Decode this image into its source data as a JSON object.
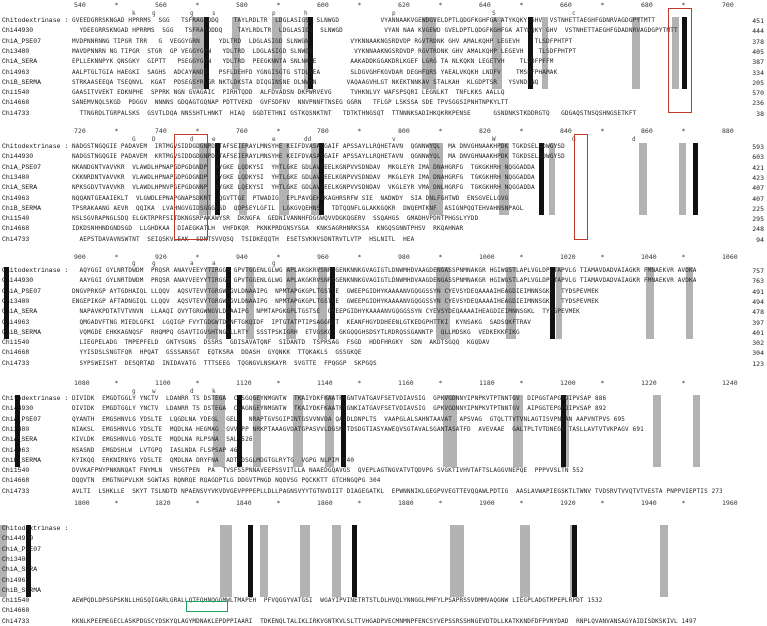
{
  "species": [
    "Chitodextrinase :",
    "Chi44930",
    "ChiA_PSE07",
    "Chi3480",
    "ChiA_SERA",
    "Chi4963",
    "ChiB_SERMA",
    "Chi1540",
    "Chi4668",
    "Chi4733"
  ],
  "block1": {
    "ruler": [
      "540",
      "*",
      "560",
      "*",
      "580",
      "*",
      "600",
      "*",
      "620",
      "*",
      "640",
      "*",
      "660",
      "*",
      "680",
      "*",
      "700"
    ],
    "cons": [
      "k",
      "g",
      "g",
      "s",
      "p",
      "h",
      "p",
      "S",
      "c"
    ],
    "seqs": [
      "GVEEDGRRSKNGAD HPRRMS  SGG   TSFRAGDDDQ    TAYLRDLTR  LDGLASIGS  SLNWGD           VYANNAAKVGEWDGVELDPTLQDGFKGHFGA ATYKQKY GHV  VSTNHETTAEGHFGDNRVAGDGPYTMTT",
      "  YDEEGRRSKNGAD HPRRMS  SGG   TSFRAGDDDQ    TAYLRDLTR  LDGLASIGS  SLNWGD           VYAN NAA KVGEWD GVELDPTLQDGFKGHFGA ATYKQKY GHV  VSTNHETTAEGHFGDADNRVAGDGPYTMTT",
      "MVDPNNRNNG TIPGR TRR   G  VEGGYGRN     YDLTRD  LDGLASIGD SLNWGN           VYKNNAAKNGSRDVDP RGVTRDNK GHV AMALKQHP LEGEVH    TLSDFPHTPT",
      "MAVDPNNRN NG TIPGR  STGR  GP VEGGYGRN   YDLTRD  LDGLASIGD SLNWGN           VYKNNAAKNGSRDVDP RGVTRDNK GHV AMALKQHP LEGEVH    TLSDFPHTPT",
      "EPLLEKNNPYK QNSGKY  GIPTT   PSEGGYGRN   YDLTRD  PEEGKNNTA SNLNKGE         AAKADDKGGAKDRLKGEF LGRG TA NLKQKN LEGETVH    TLSDFPFFM",
      "AALPTGLTGIA HAEGKI  SAGHS  ADCAYANDN   PSFLDEHFD YGNGISGTG STDLWEA        SLDGVGHFKGVDAR DEGHFQRS YAEALVKQKH LNDFV    TMSEFPHAMAK",
      "STRKAASEEQA TSEQNVL  KGAT  PDSEGSYRLGR NKTLDKSTA DIQGINSNE DLNWKN        VAQAAGVHLGT NKEKTNNKAV STALKAH  KLGDPTSR   YSVNDLNQ",
      "GAASITVVEKT EDKNPHE  SPPRK NGN GVAGAIC  PIRHTQDD  ALFDVADSN DKPWRVEVG     TVHKNLVY WAFSPSQRI LEGNLKT  TNFLKKS AALLQ",
      "SANEMVNQLSKGD  PDGGV  NNNNS GDQAGTGQNAP PDTTVEKD  GVFSDFNV  NNVPNNFTNSEG GGRN   TFLGP LSKSSA SDE TPVSGGSIPNHTNPKYLTT",
      "  TTNGRDLTGRPALSKS  GSVTLDQA NNSSHTLHNKT  HIAQ  GGDTETHNI GSTKQSNKTNT   TDTKTHNGSQT  TTNNNKSADIHKQKRKPENSE      GSNDNKSTKDDRGTQ   GDGAQSTNSQSHNGSETKFT"
    ],
    "ends": [
      "451",
      "444",
      "378",
      "405",
      "387",
      "334",
      "205",
      "570",
      "236",
      "38"
    ]
  },
  "block2": {
    "ruler": [
      "720",
      "*",
      "740",
      "*",
      "760",
      "*",
      "780",
      "*",
      "800",
      "*",
      "820",
      "*",
      "840",
      "*",
      "860",
      "*",
      "880"
    ],
    "cons": [
      "G",
      "D",
      "d",
      "e",
      "e",
      "dd",
      "v",
      "W",
      "G",
      "d"
    ],
    "seqs": [
      "NADGSTNGQGIE PADAVEM  IRTMGVSIDDGDGNPDDTAFSEIERAYLMNSYHE KEIFDVASAQGAIF APSSAYLLRQHETAVN  QGNNWYQL  MA DNVGHNAAKHPDK TGKDSELADWGYSD",
      "NADGSTNGQGIE PADAVEM  KRTMGVSIDDGDGNPDDTAFSEIERAYLMNSYHE KEIFDVASAQGAIF APSSAYLLRQHETAVN  QGNNWYQL  MA DNVGHNAAKHPDK TGKDSELADWGYSD",
      "NKANDGNTVAVVKR  VLAWDLHPNAPGDPGDGNDP  AYGKE LQDKYSI  YHTLGKE GDLAVGEELKGNPVVSDNDAV  MKGLEYR IMA DNAHGRFG  TGKGKHRH NQGGADDA",
      "CKKNRDNTVAVVKR  VLAWDLHPNAPGDPGDGNDP  AYGKE LQDKYSI  YHTLGKE GDLAVGEELKGNPVVSDNDAV  MKGLEYR IMA DNAHGRFG  TGKGKHRH NQGGADDA",
      "NPKSGDVTVAVVKR  VLAWDLHPNVPGEPGDGNNP  AYGKE LQEKYSI  YHTLGKE GDLAVGEELKGNPVVSDNDAV  VKGLEYR VMA DNLHGRFG  TGKGKHRH NQGGADDA",
      "NQQANTGEAAIEKLT  VLGWDLEPNAPGNAPSDKRT  QGVTTGE  PTWADIG  EPLPAVGEHSKAGHRSRFW SIE  NADWDY  SIA DNLFGHTWD  ENSGVELLGVG",
      "TPSRAKAANG AEVR  QQIKA  LVAHNGVGIDSGGGVSD  QDPSEYLGFIL  LGKGVQEHNSE  TDTQQNFLGLAKKGQKR  DWQEMTKNF  ASIGNPQQTEHVAHNSNPAGL",
      "NSLSGVRAPNGLSDQ ELGKTRPRFSITDKNGSRPAKAWYSR  DKNGFA  GEDNIVANNHFDGGWQVVDGKQGERV  SSQAHGS  GMADHVPDNTPHGSLYYDD",
      "IDKDSNHHNDGNDSGD  LLGHDKAA  DIAEGKATLH  VHFDKQR  PKNKPRDGNSYSGA  KNKSAGRHNRKSSA  KNGQSGNNTPHSV  RKQAHNAR",
      "  AEPSTDAVAVNSWTNT  SEIQSKVLEAK  SDNTSVVQSQ  TSIDKEQQTH  ESETSVKNVSDNTRVTLVTP  HSLNITL  HEA"
    ],
    "ends": [
      "593",
      "603",
      "421",
      "423",
      "407",
      "407",
      "225",
      "295",
      "248",
      "94"
    ]
  },
  "block3": {
    "ruler": [
      "900",
      "*",
      "920",
      "*",
      "940",
      "*",
      "960",
      "*",
      "980",
      "*",
      "1000",
      "*",
      "1020",
      "*",
      "1040",
      "*",
      "1060"
    ],
    "cons": [
      "g",
      "g",
      "a",
      "a",
      "g"
    ],
    "seqs": [
      "  AQYGGI GYLNRTDWDM  PRQSR ANAYVEEYYTIRGGW GPVTGGENLGLWG APLAKGKRVSNRYGENKNNKGVAGIGTLDNWMHDVAAGDENGASSPNMNAKGR HGIWGSTLAPLVGLDPTTAPVLG TIAMAVDADVAIAGKR FMNAEKVR AVDKA",
      "  AAYGGI GYLNRTDWDM  PRQSR ANAYVEEYYTIRGGW GPVTGGENLGLWG APLAKGKRVSNRYGENKNNKGVAGIGTLDNWMHDVAAGDENGASSPNMNAKGR HGIWGSTLAPLVGLDPTTAPVLG TIAMAVDADVAIAGKR FMNAEKVR AVDKA",
      "DNGVPRKGP AYTGDHAIQL LLQQV  AQSVTEVYTGRGWNGVLDNAAIPG  NPMTAPGKGPLTGSTSE  GWEEPGIDHYKAAAANVGQGGSSYN CYEVSYDEQAAAAIHEAGDIEIMNNSGKL  TYDSPEVMEK",
      "ENGEPIKGP AFTADNGIQL LLQQV  AQSVTEVYTGRGWNGVLDNAAIPG  NPMTAPGKGPLTGSTSE  GWEEPGIDHYKAAAANVGQGGSSYN CYEVSYDEQAAAAIHEAGDIEIMNNSGKL  TYDSPEVMEK",
      "  NAPAVKPDTATVTVNVN  LLAAQI QVYTGRGWNGVLDNAAIPG  NPMTAPGKGPLTGSTSE  GWEEPGIDHYKAAAANVGQGGSSYN CYEVSYDEQAAAAIHEAGDIEIMNNSGKL  TYDSPEVMEK",
      "  QMGADVFTNG MIEDLGFKI  LGQIGP FVYTGDGWTDNNFTGKQIDF  IPTGTATPTIPSAGGRHT  KEANFHGYDDHEENLGTKEDGPHTTKI  KYNSAKG  SADSQKFTRAV",
      "  VQMGDE EHKKAGNQSF  RHQMPQ GSAVTIGVSHTNGFLLRTY  SSSTPSKIGRH  ETVGSKQ  GKGQQGHSDSYTLRDRQSSGANNTP  QLLMDSKG  VEDKEKKFIKG",
      "  LIEGPELADG  TMPEPFELD  GNTYSGNS  DSSRS  GDISAVATQNF  SIDANTD  TSPRSAG  FSGD  HDDFHRGKY  SDN  AKDTSGQQ  KGQDAV",
      "  YYISDSLSNGTFQR  HPQAT  GSSSANSGT  EQTKSRA  DDASH  GYQNKK  TTQKAKLS  GSSGKQE",
      "  SYPSWEISHT  DESQRTAD  INIDAVATG  TTTSEEG  TQGNGVLNSKAYR  SVGTTE  FPQGGP  SKPGQS"
    ],
    "ends": [
      "757",
      "763",
      "491",
      "494",
      "478",
      "397",
      "401",
      "302",
      "304",
      "123"
    ]
  },
  "block4": {
    "ruler": [
      "1080",
      "*",
      "1100",
      "*",
      "1120",
      "*",
      "1140",
      "*",
      "1160",
      "*",
      "1180",
      "*",
      "1200",
      "*",
      "1220",
      "*",
      "1240"
    ],
    "cons": [
      "g",
      "w",
      "d",
      "k"
    ],
    "ruler_bottom": [
      "1800",
      "*",
      "1820",
      "*",
      "1840",
      "*",
      "1860",
      "*",
      "1880",
      "*",
      "1900",
      "*",
      "1920",
      "*",
      "1940",
      "*",
      "1960"
    ],
    "seqs": [
      "DIVIDK  EMGDTGGLY YNCTV  LDANRR TS DSTEGA  CESGQGEYNMGNTW  TKAIYDKFKAATPYGNTVATGAVFSETVDIAVSIG  GPKVGDNNYIPNPKVTPTNNTGV  DIPGGTAPGFDIPVSAP 886",
      "DIVIDK  EMGDTGGLY YNCTV  LDANRR TS DSTEGA  CAAGNGEYNMGNTW  TKAIYDKFKAATPYGNKIATGAVFSETVDIAVSIG  GPKVGDNNYIPNPKVTPTNNTGV  AIPGGTEPGFDIPVSAP 892",
      "QYANTH  EMGSHNVLG YDSLTE  LQGDLNA YDEGL  GELP  NRAPTGVSGIPINTGSVVNVDA QASDLDNPLTS  VAAPGLALSAHNTAAVAT  APSVAG  GTQLTTVTVNLAGTISVPNGAN AAPVNTPVS 695",
      "NIAKSL  EMGSHNVLG YDSLTE  MQDLNA HEGMAG  GVVTPP NRKPTAAAGVDATGPASVVLDGSNSTDSDGTIASYAWEQVSGTAVALSGANTASATFD  AVEVAAE  GALTPLTVTDNEGA TASLLAVTVTVKPAGV 691",
      "KIVLDK  EMGSHNVLG YDSLTE  MQDLNA RLPSNA  SAL 526",
      "NSASND  EMGDSHLW  LVTGPQ  IASLNDA FLSPSAP 462",
      "KYIKQQ  ERKNIRNYG YDSLTE  QMDLNA DRYFNA  ADTDDSGLMDGTGLRYTG  VGPG NLPIM 540",
      "DVVKAFPNYPNKNNQAT FNYMLN  VHSGTPEN  PA  TVSFSSPNNAVEEPSSVITLLA NAAEDGQAVGS  QVEPLAGTNGVATVTQDVPG SVGKTIVHVTAFTSLAGGVNEPQE  PPPVVSLTN 552",
      "DQQVTN  EMGTNGPVLKM SGWTAS RQNRQE RQAGDPTLG DDGVTPNGD NQDVSG PQCKKTT GTCHNGQPG 304",
      "AVLTI  LSHKLLE  SKYT TSLNDTD NPAENSVYVKVDVGEVPPPEPLLDLLPAGNSVYYTGTNVDIIT DIAGEGATKL  EPWNNNIKLGEGPVVEGTTEVQQAWLPDTIG  AASLAVWAPIEGSKTLTWNV TVDSRVTVVQTVTVESTA PNPPVIEPTIS 273"
    ]
  },
  "block5": {
    "seqs": [
      "",
      "",
      "",
      "",
      "",
      "",
      "",
      "AEWPQDLDPSGPSKNLLHGSQIGARLGRALLQTEQHNQGGMWLTMAPEH  PFVQGGYVATGSI  WGAYIPVINETRTSTLDLHVQLYNNGGLPMFYLPSAPRSSVDMMVAQGNW LIEGPLADGTMPEPLRPDT 1532",
      "",
      "KKNLKPEEMEGECLASKPDGSCYDSKYQLAGYMDNAKLEPDPPIAARI  TDKENQLTALIKLIRKVGNTKVLSLTTVHGADPVECMNMNPFENCSYVEPSSRSSHNGEVDTDLLKATKKNDFDFPVNYDAD  RNPLQVANVANSAGYAIDISDKSKIVL 1497"
    ]
  }
}
